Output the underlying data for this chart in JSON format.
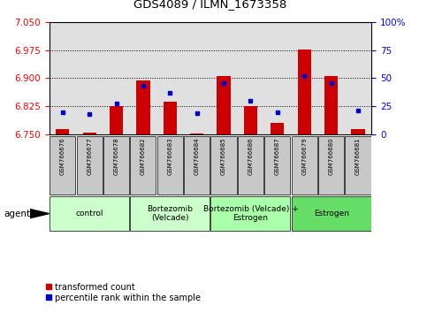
{
  "title": "GDS4089 / ILMN_1673358",
  "samples": [
    "GSM766676",
    "GSM766677",
    "GSM766678",
    "GSM766682",
    "GSM766683",
    "GSM766684",
    "GSM766685",
    "GSM766686",
    "GSM766687",
    "GSM766679",
    "GSM766680",
    "GSM766681"
  ],
  "transformed_count": [
    6.765,
    6.755,
    6.826,
    6.895,
    6.837,
    6.752,
    6.905,
    6.827,
    6.782,
    6.977,
    6.905,
    6.765
  ],
  "percentile_rank": [
    20,
    18,
    28,
    43,
    37,
    19,
    46,
    30,
    20,
    52,
    46,
    21
  ],
  "y_min": 6.75,
  "y_max": 7.05,
  "y_ticks": [
    6.75,
    6.825,
    6.9,
    6.975,
    7.05
  ],
  "y_right_ticks": [
    0,
    25,
    50,
    75,
    100
  ],
  "y_right_labels": [
    "0",
    "25",
    "50",
    "75",
    "100%"
  ],
  "group_boundaries": [
    {
      "start": 0,
      "end": 2,
      "label": "control",
      "color": "#ccffcc"
    },
    {
      "start": 3,
      "end": 5,
      "label": "Bortezomib\n(Velcade)",
      "color": "#ccffcc"
    },
    {
      "start": 6,
      "end": 8,
      "label": "Bortezomib (Velcade) +\nEstrogen",
      "color": "#aaffaa"
    },
    {
      "start": 9,
      "end": 11,
      "label": "Estrogen",
      "color": "#66dd66"
    }
  ],
  "bar_color": "#cc0000",
  "dot_color": "#0000cc",
  "bar_width": 0.5,
  "background_color": "#ffffff",
  "plot_bg_color": "#e0e0e0",
  "sample_box_color": "#c8c8c8",
  "legend_items": [
    "transformed count",
    "percentile rank within the sample"
  ],
  "agent_label": "agent"
}
